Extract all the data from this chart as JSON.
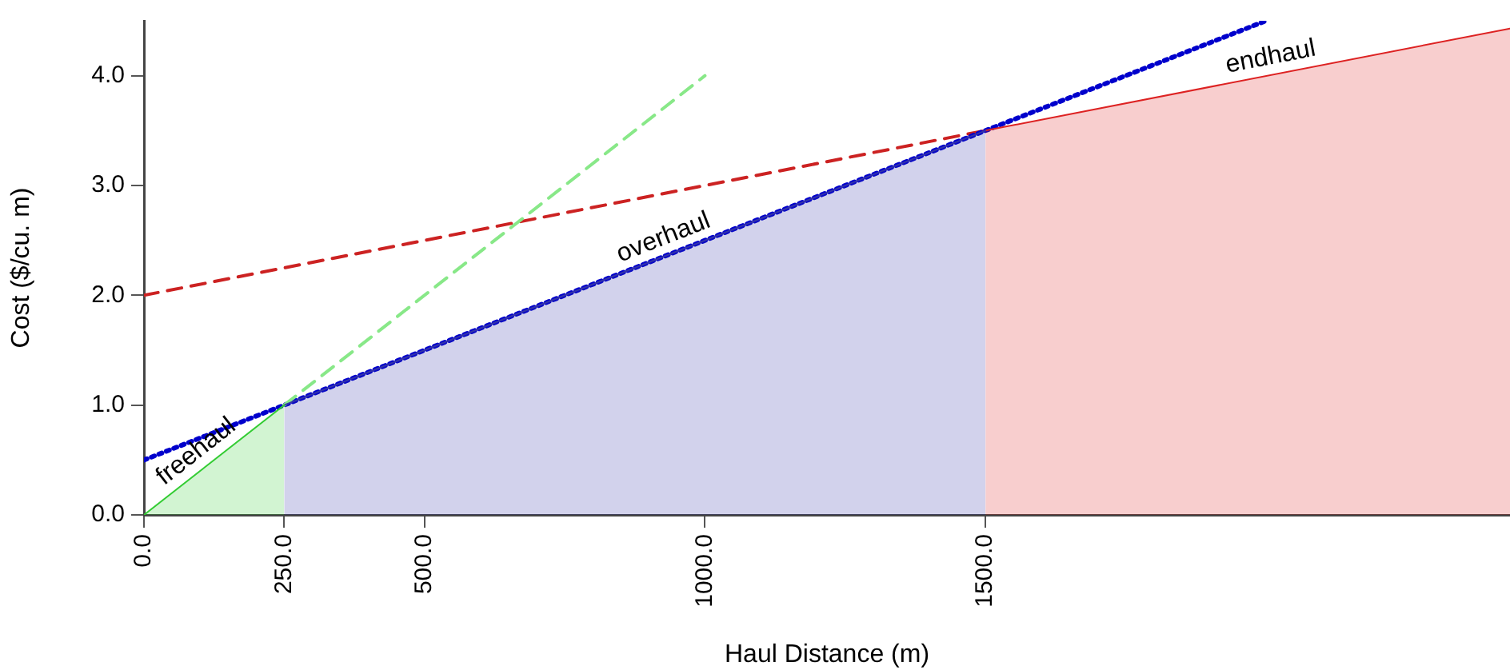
{
  "chart_data": {
    "type": "line",
    "xlabel": "Haul Distance (m)",
    "ylabel": "Cost ($/cu. m)",
    "xlim": [
      0,
      2435
    ],
    "ylim": [
      0,
      4.5
    ],
    "xticks": [
      {
        "value": 0,
        "label": "0.0"
      },
      {
        "value": 250,
        "label": "250.0"
      },
      {
        "value": 500,
        "label": "500.0"
      },
      {
        "value": 1000,
        "label": "1000.0"
      },
      {
        "value": 1500,
        "label": "1500.0"
      }
    ],
    "yticks": [
      {
        "value": 0,
        "label": "0.0"
      },
      {
        "value": 1,
        "label": "1.0"
      },
      {
        "value": 2,
        "label": "2.0"
      },
      {
        "value": 3,
        "label": "3.0"
      },
      {
        "value": 4,
        "label": "4.0"
      }
    ],
    "grid": false,
    "legend": false,
    "marker": "none",
    "series": [
      {
        "type": "area",
        "color": "#33cc33",
        "x": [
          0,
          250
        ],
        "values": [
          0,
          1
        ]
      },
      {
        "type": "area",
        "color": "#3333aa",
        "x": [
          250,
          1500
        ],
        "values": [
          1,
          3.5
        ]
      },
      {
        "type": "area",
        "color": "#dd2222",
        "x": [
          1500,
          2435
        ],
        "values": [
          3.5,
          4.43
        ]
      },
      {
        "type": "line",
        "color": "#88e888",
        "line_style": "dashed",
        "x": [
          250,
          1000
        ],
        "values": [
          1,
          4
        ]
      },
      {
        "type": "line",
        "color": "#0000cc",
        "line_style": "dotted",
        "x": [
          0,
          2000
        ],
        "values": [
          0.5,
          4.5
        ]
      },
      {
        "type": "line",
        "color": "#cc2222",
        "line_style": "dashed",
        "x": [
          0,
          1500
        ],
        "values": [
          2,
          3.5
        ]
      }
    ],
    "annotations": [
      "freehaul",
      "overhaul",
      "endhaul"
    ]
  }
}
